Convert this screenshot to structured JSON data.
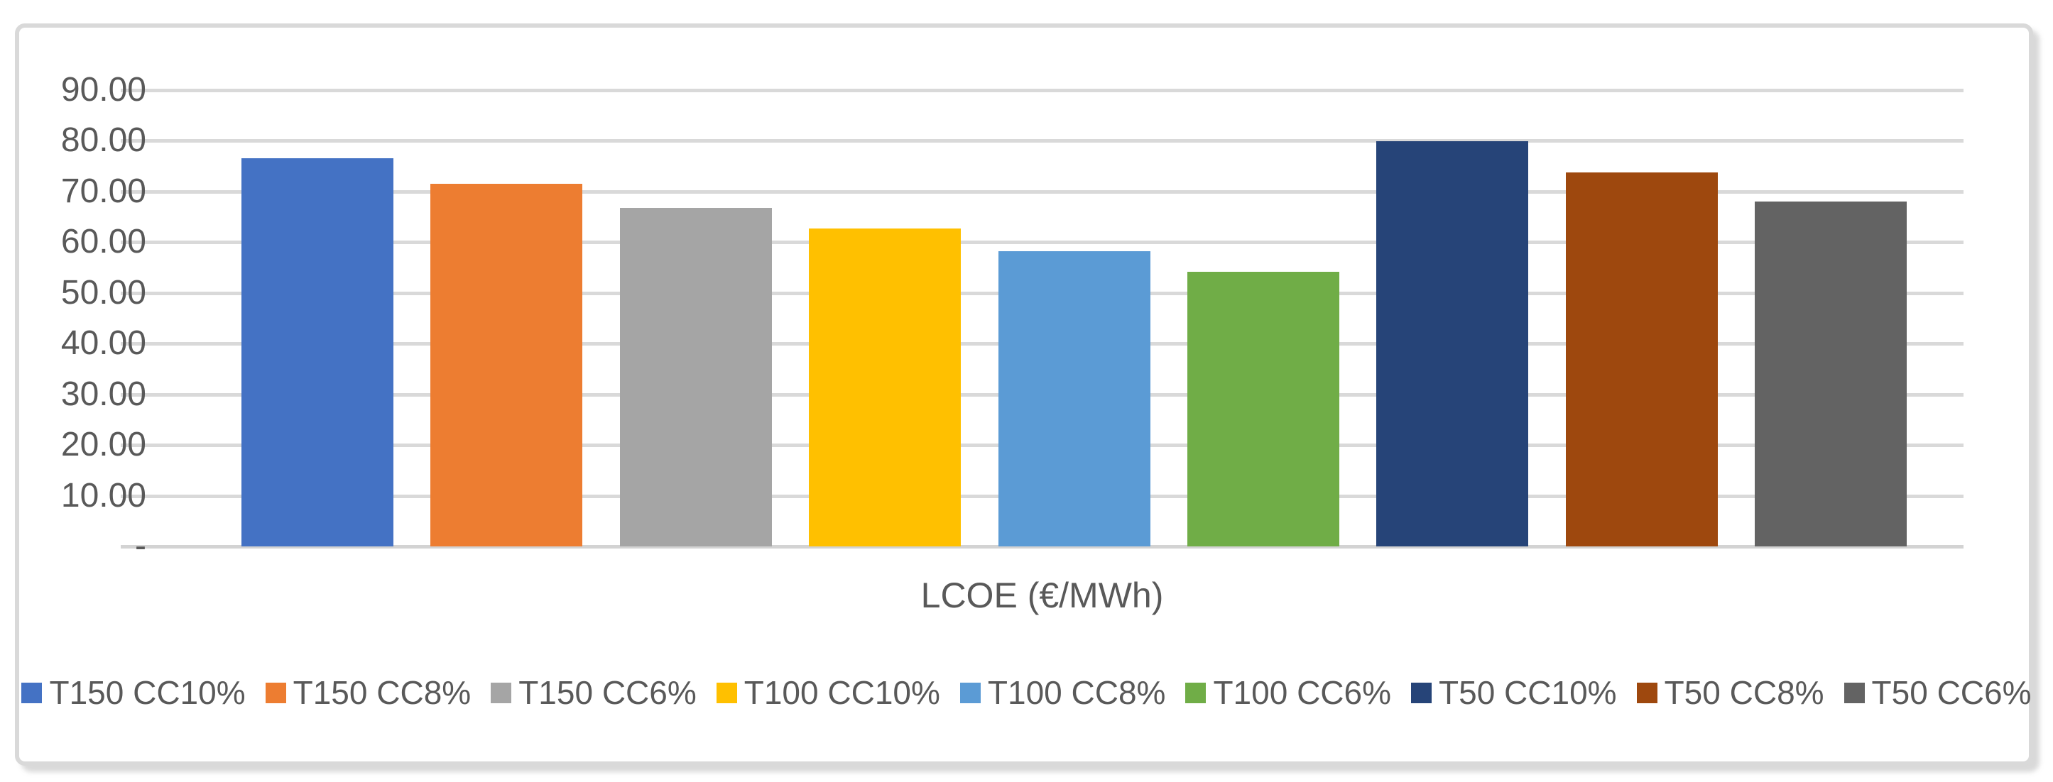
{
  "chart_data": {
    "type": "bar",
    "title": "",
    "xlabel": "LCOE (€/MWh)",
    "ylabel": "",
    "categories": [
      "T150 CC10%",
      "T150 CC8%",
      "T150 CC6%",
      "T100 CC10%",
      "T100 CC8%",
      "T100 CC6%",
      "T50 CC10%",
      "T50 CC8%",
      "T50 CC6%"
    ],
    "values": [
      76.6,
      71.5,
      66.8,
      62.7,
      58.2,
      54.1,
      79.9,
      73.7,
      68.0
    ],
    "colors": [
      "#4472C4",
      "#ED7D31",
      "#A5A5A5",
      "#FFC000",
      "#5B9BD5",
      "#70AD47",
      "#264478",
      "#9E480E",
      "#636363"
    ],
    "ylim": [
      0,
      90
    ],
    "ytick_step": 10,
    "ytick_labels": [
      "-",
      "10.00",
      "20.00",
      "30.00",
      "40.00",
      "50.00",
      "60.00",
      "70.00",
      "80.00",
      "90.00"
    ],
    "grid": true,
    "legend_position": "bottom",
    "gridline_color": "#d9d9d9",
    "text_color": "#595959"
  },
  "legend": {
    "items": [
      {
        "label": "T150 CC10%",
        "color": "#4472C4"
      },
      {
        "label": "T150 CC8%",
        "color": "#ED7D31"
      },
      {
        "label": "T150 CC6%",
        "color": "#A5A5A5"
      },
      {
        "label": "T100 CC10%",
        "color": "#FFC000"
      },
      {
        "label": "T100 CC8%",
        "color": "#5B9BD5"
      },
      {
        "label": "T100 CC6%",
        "color": "#70AD47"
      },
      {
        "label": "T50 CC10%",
        "color": "#264478"
      },
      {
        "label": "T50 CC8%",
        "color": "#9E480E"
      },
      {
        "label": "T50 CC6%",
        "color": "#636363"
      }
    ]
  }
}
